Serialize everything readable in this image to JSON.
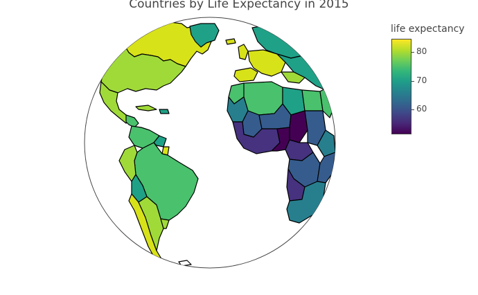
{
  "title": "Countries by Life Expectancy in 2015",
  "colorbar": {
    "title": "life expectancy",
    "ticks": [
      "80",
      "70",
      "60"
    ],
    "tick_values": [
      80,
      70,
      60
    ],
    "range": [
      51.5,
      84.5
    ],
    "colors": [
      "#fde725",
      "#b5de2b",
      "#6ece58",
      "#35b779",
      "#1f9e89",
      "#26828e",
      "#31688e",
      "#3e4989",
      "#482878",
      "#440154"
    ]
  },
  "map": {
    "projection": "orthographic",
    "palette": {
      "very_high": "#d8e219",
      "high": "#a0da39",
      "mid_high": "#4ac16d",
      "mid": "#1fa187",
      "mid_low": "#277f8e",
      "low": "#365c8d",
      "very_low": "#46327e",
      "lowest": "#440154"
    }
  },
  "chart_data": {
    "type": "choropleth",
    "title": "Countries by Life Expectancy in 2015",
    "colorbar_title": "life expectancy",
    "colorbar_range": [
      51.5,
      84.5
    ],
    "colorbar_ticks": [
      60,
      70,
      80
    ]
  }
}
